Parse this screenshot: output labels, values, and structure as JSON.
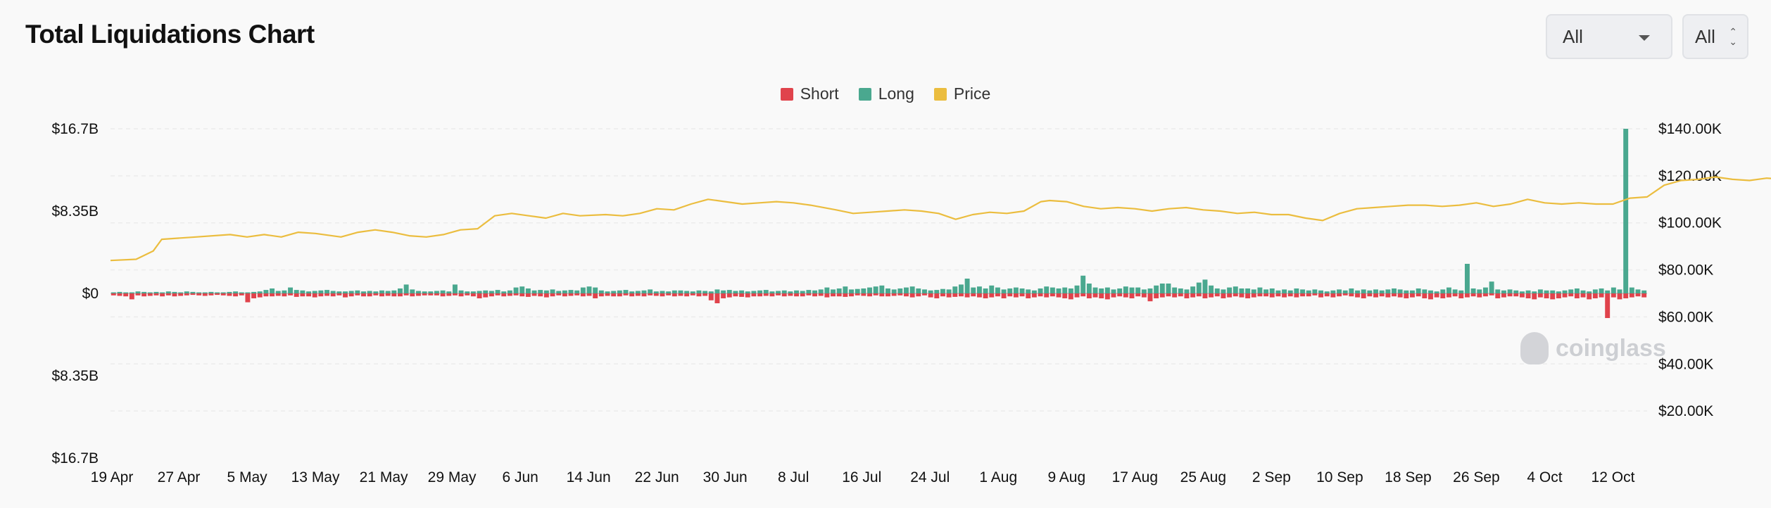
{
  "header": {
    "title": "Total Liquidations Chart",
    "range_select": "All",
    "coin_select": "All"
  },
  "watermark": "coinglass",
  "chart_data": {
    "type": "bar",
    "legend": [
      {
        "name": "Short",
        "color": "#e0434c"
      },
      {
        "name": "Long",
        "color": "#4aa88f"
      },
      {
        "name": "Price",
        "color": "#ebbd3f"
      }
    ],
    "left_axis": {
      "ticks": [
        "$16.7B",
        "$8.35B",
        "$0",
        "$8.35B",
        "$16.7B"
      ],
      "range": [
        -16.7,
        16.7
      ],
      "unit": "B"
    },
    "right_axis": {
      "ticks": [
        "$140.00K",
        "$120.00K",
        "$100.00K",
        "$80.00K",
        "$60.00K",
        "$40.00K",
        "$20.00K"
      ],
      "range": [
        0,
        140
      ]
    },
    "x_labels": [
      "19 Apr",
      "27 Apr",
      "5 May",
      "13 May",
      "21 May",
      "29 May",
      "6 Jun",
      "14 Jun",
      "22 Jun",
      "30 Jun",
      "8 Jul",
      "16 Jul",
      "24 Jul",
      "1 Aug",
      "9 Aug",
      "17 Aug",
      "25 Aug",
      "2 Sep",
      "10 Sep",
      "18 Sep",
      "26 Sep",
      "4 Oct",
      "12 Oct"
    ],
    "start_date": "2025-04-19",
    "long": [
      0.1,
      0.15,
      0.1,
      0.1,
      0.2,
      0.15,
      0.1,
      0.15,
      0.1,
      0.2,
      0.15,
      0.1,
      0.2,
      0.15,
      0.1,
      0.1,
      0.15,
      0.1,
      0.1,
      0.15,
      0.2,
      0.1,
      0.1,
      0.15,
      0.2,
      0.35,
      0.5,
      0.25,
      0.3,
      0.6,
      0.35,
      0.3,
      0.2,
      0.25,
      0.3,
      0.35,
      0.25,
      0.2,
      0.2,
      0.25,
      0.3,
      0.2,
      0.25,
      0.2,
      0.3,
      0.25,
      0.3,
      0.5,
      0.9,
      0.4,
      0.25,
      0.2,
      0.2,
      0.25,
      0.3,
      0.2,
      0.9,
      0.3,
      0.2,
      0.2,
      0.25,
      0.3,
      0.25,
      0.35,
      0.2,
      0.3,
      0.6,
      0.7,
      0.5,
      0.3,
      0.35,
      0.3,
      0.4,
      0.25,
      0.3,
      0.35,
      0.3,
      0.6,
      0.7,
      0.6,
      0.3,
      0.2,
      0.25,
      0.3,
      0.35,
      0.2,
      0.25,
      0.3,
      0.4,
      0.2,
      0.25,
      0.2,
      0.3,
      0.3,
      0.25,
      0.2,
      0.3,
      0.25,
      0.2,
      0.4,
      0.3,
      0.35,
      0.25,
      0.3,
      0.2,
      0.25,
      0.3,
      0.35,
      0.2,
      0.25,
      0.3,
      0.2,
      0.3,
      0.25,
      0.35,
      0.3,
      0.4,
      0.6,
      0.4,
      0.5,
      0.7,
      0.4,
      0.45,
      0.5,
      0.6,
      0.7,
      0.8,
      0.5,
      0.4,
      0.5,
      0.6,
      0.7,
      0.5,
      0.4,
      0.3,
      0.35,
      0.45,
      0.4,
      0.7,
      0.9,
      1.5,
      0.6,
      0.7,
      0.5,
      0.8,
      0.6,
      0.4,
      0.5,
      0.6,
      0.5,
      0.4,
      0.3,
      0.5,
      0.7,
      0.6,
      0.5,
      0.6,
      0.5,
      0.8,
      1.8,
      1.0,
      0.6,
      0.5,
      0.6,
      0.4,
      0.5,
      0.7,
      0.6,
      0.6,
      0.4,
      0.5,
      0.8,
      1.0,
      1.0,
      0.6,
      0.5,
      0.4,
      0.7,
      1.1,
      1.4,
      0.8,
      0.5,
      0.4,
      0.6,
      0.7,
      0.5,
      0.5,
      0.4,
      0.6,
      0.4,
      0.5,
      0.3,
      0.4,
      0.3,
      0.5,
      0.4,
      0.3,
      0.4,
      0.3,
      0.2,
      0.3,
      0.4,
      0.3,
      0.5,
      0.3,
      0.4,
      0.3,
      0.4,
      0.3,
      0.4,
      0.5,
      0.4,
      0.3,
      0.3,
      0.5,
      0.4,
      0.3,
      0.2,
      0.4,
      0.6,
      0.4,
      0.3,
      3.0,
      0.5,
      0.4,
      0.6,
      1.2,
      0.4,
      0.3,
      0.4,
      0.3,
      0.2,
      0.3,
      0.2,
      0.4,
      0.3,
      0.3,
      0.2,
      0.3,
      0.4,
      0.5,
      0.3,
      0.2,
      0.4,
      0.5,
      0.3,
      0.6,
      0.4,
      16.7,
      0.6,
      0.4,
      0.3,
      0.5,
      0.6,
      0.5
    ],
    "short": [
      0.2,
      0.25,
      0.3,
      0.6,
      0.2,
      0.3,
      0.25,
      0.2,
      0.3,
      0.2,
      0.3,
      0.25,
      0.2,
      0.15,
      0.2,
      0.25,
      0.2,
      0.15,
      0.2,
      0.25,
      0.3,
      0.2,
      0.9,
      0.5,
      0.4,
      0.3,
      0.3,
      0.25,
      0.3,
      0.2,
      0.35,
      0.3,
      0.3,
      0.4,
      0.3,
      0.25,
      0.3,
      0.2,
      0.4,
      0.3,
      0.2,
      0.3,
      0.3,
      0.2,
      0.3,
      0.25,
      0.3,
      0.3,
      0.2,
      0.3,
      0.25,
      0.2,
      0.2,
      0.2,
      0.3,
      0.25,
      0.2,
      0.3,
      0.2,
      0.3,
      0.5,
      0.4,
      0.3,
      0.2,
      0.3,
      0.25,
      0.2,
      0.3,
      0.35,
      0.25,
      0.3,
      0.4,
      0.3,
      0.2,
      0.3,
      0.25,
      0.2,
      0.3,
      0.25,
      0.5,
      0.3,
      0.25,
      0.3,
      0.3,
      0.2,
      0.3,
      0.25,
      0.3,
      0.2,
      0.25,
      0.3,
      0.2,
      0.3,
      0.25,
      0.3,
      0.2,
      0.3,
      0.25,
      0.7,
      1.0,
      0.5,
      0.4,
      0.3,
      0.35,
      0.4,
      0.3,
      0.3,
      0.25,
      0.3,
      0.2,
      0.3,
      0.25,
      0.3,
      0.3,
      0.2,
      0.3,
      0.25,
      0.4,
      0.3,
      0.3,
      0.35,
      0.3,
      0.2,
      0.25,
      0.3,
      0.2,
      0.3,
      0.3,
      0.25,
      0.2,
      0.3,
      0.4,
      0.3,
      0.2,
      0.4,
      0.5,
      0.3,
      0.4,
      0.35,
      0.3,
      0.4,
      0.3,
      0.4,
      0.5,
      0.4,
      0.3,
      0.5,
      0.3,
      0.4,
      0.3,
      0.5,
      0.4,
      0.3,
      0.4,
      0.3,
      0.4,
      0.5,
      0.6,
      0.4,
      0.3,
      0.5,
      0.4,
      0.5,
      0.6,
      0.4,
      0.3,
      0.4,
      0.5,
      0.3,
      0.4,
      0.8,
      0.5,
      0.4,
      0.3,
      0.4,
      0.3,
      0.5,
      0.4,
      0.3,
      0.5,
      0.4,
      0.3,
      0.5,
      0.4,
      0.3,
      0.4,
      0.5,
      0.4,
      0.3,
      0.3,
      0.4,
      0.3,
      0.4,
      0.3,
      0.4,
      0.3,
      0.3,
      0.2,
      0.4,
      0.3,
      0.4,
      0.3,
      0.2,
      0.3,
      0.4,
      0.5,
      0.3,
      0.4,
      0.3,
      0.4,
      0.3,
      0.4,
      0.5,
      0.4,
      0.3,
      0.5,
      0.6,
      0.4,
      0.5,
      0.4,
      0.3,
      0.5,
      0.4,
      0.3,
      0.4,
      0.3,
      0.2,
      0.5,
      0.4,
      0.3,
      0.3,
      0.4,
      0.5,
      0.6,
      0.4,
      0.5,
      0.6,
      0.5,
      0.4,
      0.3,
      0.5,
      0.4,
      0.6,
      0.5,
      0.4,
      2.5,
      0.4,
      0.6,
      0.5,
      0.4,
      0.3,
      0.4
    ],
    "price": [
      [
        0,
        84
      ],
      [
        3,
        84.5
      ],
      [
        5,
        88
      ],
      [
        6,
        93
      ],
      [
        10,
        94
      ],
      [
        14,
        95
      ],
      [
        16,
        94
      ],
      [
        18,
        95
      ],
      [
        20,
        94
      ],
      [
        22,
        96
      ],
      [
        24,
        95.5
      ],
      [
        27,
        94
      ],
      [
        29,
        96
      ],
      [
        31,
        97
      ],
      [
        33,
        96
      ],
      [
        35,
        94.5
      ],
      [
        37,
        94
      ],
      [
        39,
        95
      ],
      [
        41,
        97
      ],
      [
        43,
        97.5
      ],
      [
        45,
        103
      ],
      [
        47,
        104
      ],
      [
        49,
        103
      ],
      [
        51,
        102
      ],
      [
        53,
        104
      ],
      [
        55,
        103
      ],
      [
        58,
        103.5
      ],
      [
        60,
        103
      ],
      [
        62,
        104
      ],
      [
        64,
        106
      ],
      [
        66,
        105.5
      ],
      [
        68,
        108
      ],
      [
        70,
        110
      ],
      [
        72,
        109
      ],
      [
        74,
        108
      ],
      [
        76,
        108.5
      ],
      [
        78,
        109
      ],
      [
        80,
        108.5
      ],
      [
        82,
        107.5
      ],
      [
        85,
        105.5
      ],
      [
        87,
        104
      ],
      [
        89,
        104.5
      ],
      [
        91,
        105
      ],
      [
        93,
        105.5
      ],
      [
        95,
        105
      ],
      [
        97,
        104
      ],
      [
        99,
        101.5
      ],
      [
        101,
        103.5
      ],
      [
        103,
        104.5
      ],
      [
        105,
        104
      ],
      [
        107,
        105
      ],
      [
        109,
        109
      ],
      [
        110,
        109.5
      ],
      [
        112,
        109
      ],
      [
        114,
        107
      ],
      [
        116,
        106
      ],
      [
        118,
        106.5
      ],
      [
        120,
        106
      ],
      [
        122,
        105
      ],
      [
        124,
        106
      ],
      [
        126,
        106.5
      ],
      [
        128,
        105.5
      ],
      [
        130,
        105
      ],
      [
        132,
        104
      ],
      [
        134,
        104.5
      ],
      [
        136,
        103.5
      ],
      [
        138,
        103.5
      ],
      [
        140,
        102
      ],
      [
        142,
        101
      ],
      [
        144,
        104
      ],
      [
        146,
        106
      ],
      [
        148,
        106.5
      ],
      [
        150,
        107
      ],
      [
        152,
        107.5
      ],
      [
        154,
        107.5
      ],
      [
        156,
        107
      ],
      [
        158,
        107.5
      ],
      [
        160,
        108.5
      ],
      [
        162,
        107
      ],
      [
        164,
        108
      ],
      [
        166,
        110
      ],
      [
        168,
        108.5
      ],
      [
        170,
        108
      ],
      [
        172,
        108.5
      ],
      [
        174,
        108
      ],
      [
        176,
        108
      ],
      [
        178,
        110.5
      ],
      [
        180,
        111
      ],
      [
        182,
        116
      ],
      [
        184,
        118
      ],
      [
        186,
        118.5
      ],
      [
        188,
        119.5
      ],
      [
        190,
        118.5
      ],
      [
        192,
        118
      ],
      [
        194,
        119
      ],
      [
        196,
        118.5
      ],
      [
        198,
        118
      ],
      [
        200,
        119
      ],
      [
        202,
        118
      ],
      [
        204,
        118.5
      ],
      [
        206,
        119
      ],
      [
        208,
        119.5
      ],
      [
        210,
        119
      ],
      [
        212,
        118.5
      ],
      [
        214,
        118
      ],
      [
        216,
        117.5
      ],
      [
        218,
        116
      ],
      [
        220,
        114
      ],
      [
        222,
        113.5
      ],
      [
        224,
        115
      ],
      [
        226,
        116
      ],
      [
        228,
        115
      ],
      [
        230,
        116.5
      ],
      [
        232,
        118
      ],
      [
        234,
        118.5
      ],
      [
        236,
        117
      ],
      [
        238,
        118.5
      ],
      [
        240,
        119
      ],
      [
        242,
        122
      ],
      [
        244,
        123
      ],
      [
        246,
        119
      ],
      [
        248,
        118.5
      ],
      [
        250,
        118
      ],
      [
        252,
        118.5
      ],
      [
        254,
        117
      ],
      [
        256,
        113
      ],
      [
        258,
        115
      ],
      [
        260,
        117
      ],
      [
        262,
        115
      ],
      [
        264,
        112
      ],
      [
        266,
        111
      ],
      [
        268,
        112
      ],
      [
        270,
        111
      ],
      [
        272,
        110
      ],
      [
        274,
        111
      ],
      [
        276,
        110.5
      ],
      [
        278,
        111
      ],
      [
        280,
        112
      ],
      [
        282,
        111
      ],
      [
        284,
        110.5
      ],
      [
        286,
        111
      ],
      [
        288,
        110.5
      ],
      [
        290,
        111
      ],
      [
        292,
        114
      ],
      [
        294,
        115
      ],
      [
        296,
        116
      ],
      [
        298,
        117
      ],
      [
        300,
        116.5
      ],
      [
        302,
        117
      ],
      [
        304,
        116
      ],
      [
        306,
        117.5
      ],
      [
        308,
        116
      ],
      [
        310,
        115
      ],
      [
        312,
        113
      ],
      [
        314,
        112
      ],
      [
        316,
        110
      ],
      [
        318,
        110.5
      ],
      [
        320,
        111
      ],
      [
        322,
        112
      ],
      [
        324,
        114
      ],
      [
        326,
        115
      ],
      [
        328,
        118
      ],
      [
        330,
        120
      ],
      [
        332,
        121
      ],
      [
        334,
        122
      ],
      [
        336,
        123
      ],
      [
        338,
        122.5
      ],
      [
        340,
        124
      ],
      [
        342,
        123
      ],
      [
        343,
        121
      ],
      [
        344,
        118
      ],
      [
        345,
        115
      ],
      [
        346,
        112
      ],
      [
        347,
        111
      ],
      [
        348,
        113
      ],
      [
        350,
        114.5
      ],
      [
        352,
        114
      ],
      [
        354,
        112
      ],
      [
        356,
        111.5
      ]
    ]
  }
}
